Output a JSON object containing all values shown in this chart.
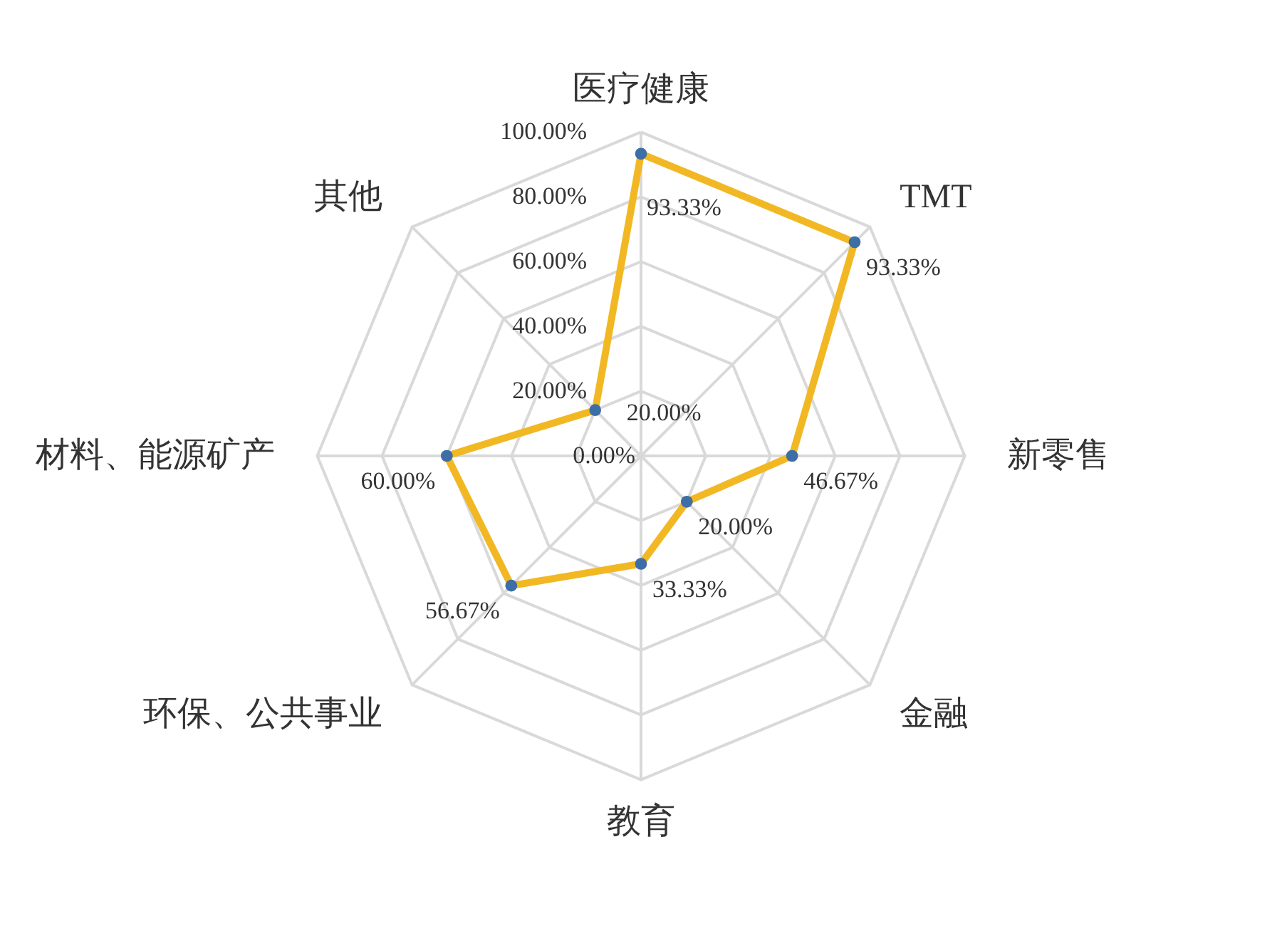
{
  "chart_data": {
    "type": "radar",
    "categories": [
      "医疗健康",
      "TMT",
      "新零售",
      "金融",
      "教育",
      "环保、公共事业",
      "材料、能源矿产",
      "其他"
    ],
    "series": [
      {
        "color": "#f2b824",
        "values": [
          93.33,
          93.33,
          46.67,
          20,
          33.33,
          56.67,
          60,
          20
        ],
        "value_labels": [
          "93.33%",
          "93.33%",
          "46.67%",
          "20.00%",
          "33.33%",
          "56.67%",
          "60.00%",
          "20.00%"
        ]
      }
    ],
    "ylim": [
      0,
      100
    ],
    "yticks": [
      {
        "value": 0,
        "label": "0.00%"
      },
      {
        "value": 20,
        "label": "20.00%"
      },
      {
        "value": 40,
        "label": "40.00%"
      },
      {
        "value": 60,
        "label": "60.00%"
      },
      {
        "value": 80,
        "label": "80.00%"
      },
      {
        "value": 100,
        "label": "100.00%"
      }
    ],
    "grid": true,
    "marker": "circle",
    "line_style": "solid"
  }
}
